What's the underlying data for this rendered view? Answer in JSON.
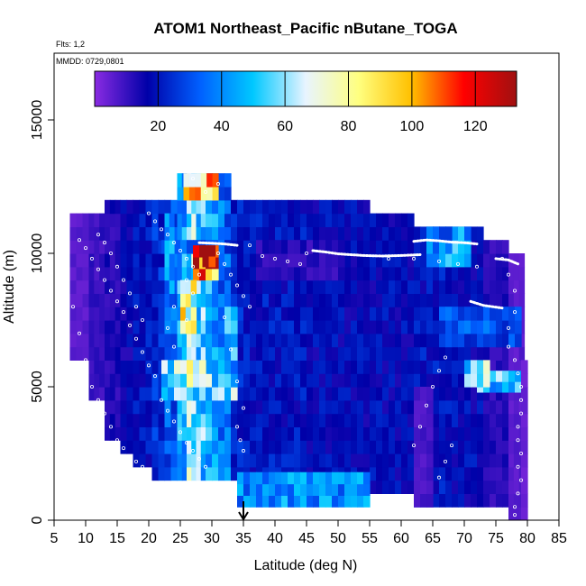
{
  "chart_data": {
    "type": "heatmap",
    "title": "ATOM1 Northeast_Pacific nButane_TOGA",
    "flights_note": "Flts: 1,2",
    "dates_note": "MMDD: 0729,0801",
    "xlabel": "Latitude (deg N)",
    "ylabel": "Altitude (m)",
    "xlim": [
      5,
      85
    ],
    "ylim": [
      0,
      17500
    ],
    "x_ticks": [
      "5",
      "10",
      "15",
      "20",
      "25",
      "30",
      "35",
      "40",
      "45",
      "50",
      "55",
      "60",
      "65",
      "70",
      "75",
      "80",
      "85"
    ],
    "y_ticks": [
      "0",
      "5000",
      "10000",
      "15000"
    ],
    "colorbar": {
      "range": [
        0,
        133
      ],
      "ticks": [
        "20",
        "40",
        "60",
        "80",
        "100",
        "120"
      ],
      "colors": [
        "#8a2be2",
        "#0000a8",
        "#0060ff",
        "#00c8ff",
        "#e8f4ff",
        "#ffff80",
        "#ffc000",
        "#ff0000",
        "#a01010"
      ]
    },
    "marker_latitude": 35,
    "cell_bands": [
      {
        "lat": [
          7.5,
          10.5
        ],
        "alt": [
          6000,
          11500
        ],
        "value": 6
      },
      {
        "lat": [
          10.5,
          13
        ],
        "alt": [
          4500,
          11500
        ],
        "value": 10
      },
      {
        "lat": [
          13,
          15.5
        ],
        "alt": [
          3000,
          12000
        ],
        "value": 13
      },
      {
        "lat": [
          15.5,
          17.5
        ],
        "alt": [
          2500,
          12000
        ],
        "value": 16
      },
      {
        "lat": [
          17.5,
          20.5
        ],
        "alt": [
          2000,
          12000
        ],
        "value": 20
      },
      {
        "lat": [
          20.5,
          22.5
        ],
        "alt": [
          1500,
          12000
        ],
        "value": 24
      },
      {
        "lat": [
          22.5,
          24.5
        ],
        "alt": [
          1500,
          12000
        ],
        "value": 32
      },
      {
        "lat": [
          24.5,
          26
        ],
        "alt": [
          1500,
          13000
        ],
        "value": 45
      },
      {
        "lat": [
          26,
          27.5
        ],
        "alt": [
          1500,
          13000
        ],
        "value": 58
      },
      {
        "lat": [
          27.5,
          29
        ],
        "alt": [
          1500,
          13000
        ],
        "value": 52
      },
      {
        "lat": [
          29,
          31
        ],
        "alt": [
          1500,
          13000
        ],
        "value": 45
      },
      {
        "lat": [
          31,
          33
        ],
        "alt": [
          1500,
          13000
        ],
        "value": 35
      },
      {
        "lat": [
          33,
          35
        ],
        "alt": [
          1500,
          12000
        ],
        "value": 22
      },
      {
        "lat": [
          35,
          45
        ],
        "alt": [
          1500,
          12000
        ],
        "value": 20
      },
      {
        "lat": [
          45,
          55
        ],
        "alt": [
          1500,
          12000
        ],
        "value": 18
      },
      {
        "lat": [
          55,
          62
        ],
        "alt": [
          1000,
          11500
        ],
        "value": 18
      },
      {
        "lat": [
          62,
          68
        ],
        "alt": [
          500,
          11000
        ],
        "value": 20
      },
      {
        "lat": [
          68,
          73
        ],
        "alt": [
          500,
          11000
        ],
        "value": 18
      },
      {
        "lat": [
          73,
          77
        ],
        "alt": [
          500,
          10500
        ],
        "value": 12
      },
      {
        "lat": [
          77,
          79.5
        ],
        "alt": [
          0,
          10000
        ],
        "value": 6
      }
    ],
    "highlight_cells": [
      {
        "lat": [
          34,
          55
        ],
        "alt": [
          500,
          1800
        ],
        "value": 40
      },
      {
        "lat": [
          22,
          34
        ],
        "alt": [
          4500,
          6000
        ],
        "value": 55
      },
      {
        "lat": [
          24,
          29
        ],
        "alt": [
          5000,
          6000
        ],
        "value": 70
      },
      {
        "lat": [
          22,
          33
        ],
        "alt": [
          10000,
          10500
        ],
        "value": 30
      },
      {
        "lat": [
          27,
          31
        ],
        "alt": [
          9000,
          10300
        ],
        "value": 110
      },
      {
        "lat": [
          28.5,
          30.5
        ],
        "alt": [
          9500,
          10300
        ],
        "value": 125
      },
      {
        "lat": [
          25,
          27.5
        ],
        "alt": [
          7000,
          9000
        ],
        "value": 80
      },
      {
        "lat": [
          25.5,
          31
        ],
        "alt": [
          12000,
          13000
        ],
        "value": 90
      },
      {
        "lat": [
          64,
          71
        ],
        "alt": [
          9500,
          11000
        ],
        "value": 45
      },
      {
        "lat": [
          64,
          68
        ],
        "alt": [
          10000,
          11000
        ],
        "value": 35
      },
      {
        "lat": [
          72,
          79
        ],
        "alt": [
          4800,
          5600
        ],
        "value": 50
      },
      {
        "lat": [
          70,
          74
        ],
        "alt": [
          5000,
          6000
        ],
        "value": 60
      },
      {
        "lat": [
          66,
          79
        ],
        "alt": [
          6500,
          8000
        ],
        "value": 30
      },
      {
        "lat": [
          37,
          51
        ],
        "alt": [
          9000,
          10500
        ],
        "value": 12
      },
      {
        "lat": [
          62,
          65
        ],
        "alt": [
          500,
          5000
        ],
        "value": 8
      },
      {
        "lat": [
          79,
          80
        ],
        "alt": [
          0,
          6000
        ],
        "value": 4
      },
      {
        "lat": [
          32,
          34
        ],
        "alt": [
          5000,
          8000
        ],
        "value": 45
      },
      {
        "lat": [
          22.5,
          24
        ],
        "alt": [
          8000,
          11500
        ],
        "value": 40
      }
    ],
    "flight_tracks": [
      [
        [
          46,
          10100
        ],
        [
          48,
          10050
        ],
        [
          50,
          9980
        ],
        [
          52,
          9950
        ],
        [
          54,
          9920
        ],
        [
          57,
          9900
        ],
        [
          60,
          9920
        ],
        [
          63,
          9950
        ]
      ],
      [
        [
          62,
          10450
        ],
        [
          64,
          10500
        ],
        [
          66,
          10470
        ],
        [
          68,
          10420
        ],
        [
          70,
          10400
        ],
        [
          72,
          10350
        ]
      ],
      [
        [
          28,
          10400
        ],
        [
          30,
          10380
        ],
        [
          32,
          10350
        ],
        [
          34,
          10300
        ]
      ],
      [
        [
          71,
          8200
        ],
        [
          73,
          8050
        ],
        [
          74.5,
          8000
        ],
        [
          76,
          7950
        ]
      ],
      [
        [
          75,
          9800
        ],
        [
          77,
          9750
        ],
        [
          78.5,
          9600
        ]
      ]
    ],
    "sample_points": [
      [
        8,
        8000
      ],
      [
        9,
        7000
      ],
      [
        10,
        6000
      ],
      [
        11,
        5000
      ],
      [
        12,
        4500
      ],
      [
        13,
        4000
      ],
      [
        14,
        3500
      ],
      [
        15,
        3000
      ],
      [
        16,
        2700
      ],
      [
        17,
        2400
      ],
      [
        18,
        2200
      ],
      [
        19,
        2000
      ],
      [
        20,
        1800
      ],
      [
        9,
        10500
      ],
      [
        10,
        10200
      ],
      [
        11,
        9800
      ],
      [
        12,
        9400
      ],
      [
        13,
        9000
      ],
      [
        14,
        8600
      ],
      [
        15,
        8200
      ],
      [
        16,
        7800
      ],
      [
        17,
        7300
      ],
      [
        18,
        6800
      ],
      [
        19,
        6300
      ],
      [
        20,
        5800
      ],
      [
        21,
        5400
      ],
      [
        12,
        10700
      ],
      [
        13,
        10400
      ],
      [
        14,
        10000
      ],
      [
        15,
        9500
      ],
      [
        16,
        9000
      ],
      [
        17,
        8500
      ],
      [
        18,
        8000
      ],
      [
        19,
        7500
      ],
      [
        20,
        11500
      ],
      [
        21,
        11200
      ],
      [
        22,
        10900
      ],
      [
        23,
        10700
      ],
      [
        24,
        10400
      ],
      [
        25,
        10100
      ],
      [
        26,
        9800
      ],
      [
        27,
        9500
      ],
      [
        28,
        9200
      ],
      [
        22,
        4500
      ],
      [
        23,
        4100
      ],
      [
        24,
        3700
      ],
      [
        25,
        3300
      ],
      [
        26,
        2900
      ],
      [
        27,
        2600
      ],
      [
        28,
        2300
      ],
      [
        29,
        2000
      ],
      [
        31,
        10000
      ],
      [
        32,
        9600
      ],
      [
        33,
        9200
      ],
      [
        34,
        8800
      ],
      [
        35,
        8400
      ],
      [
        36,
        8000
      ],
      [
        34,
        3500
      ],
      [
        34.5,
        3000
      ],
      [
        35,
        2600
      ],
      [
        35,
        4200
      ],
      [
        34,
        5200
      ],
      [
        33,
        6400
      ],
      [
        32,
        7600
      ],
      [
        40,
        9800
      ],
      [
        42,
        9700
      ],
      [
        44,
        9600
      ],
      [
        38,
        9900
      ],
      [
        58,
        9800
      ],
      [
        62,
        9800
      ],
      [
        66,
        9700
      ],
      [
        69,
        9600
      ],
      [
        72,
        9500
      ],
      [
        76,
        9800
      ],
      [
        77,
        9200
      ],
      [
        78,
        8600
      ],
      [
        78,
        7800
      ],
      [
        77,
        7200
      ],
      [
        77,
        6500
      ],
      [
        78,
        6000
      ],
      [
        78.5,
        5500
      ],
      [
        79,
        5000
      ],
      [
        79,
        4500
      ],
      [
        79,
        4000
      ],
      [
        78.5,
        3500
      ],
      [
        78.5,
        3000
      ],
      [
        79,
        2500
      ],
      [
        78.5,
        2000
      ],
      [
        79,
        1500
      ],
      [
        78.5,
        1000
      ],
      [
        78,
        500
      ],
      [
        78,
        200
      ],
      [
        62,
        2800
      ],
      [
        63,
        3500
      ],
      [
        64,
        4300
      ],
      [
        65,
        5000
      ],
      [
        66,
        5600
      ],
      [
        67,
        6100
      ],
      [
        66,
        1600
      ],
      [
        67,
        2200
      ],
      [
        68,
        2800
      ],
      [
        45,
        10000
      ],
      [
        36,
        10300
      ],
      [
        27,
        12800
      ],
      [
        29,
        12300
      ],
      [
        31,
        12600
      ],
      [
        26,
        7500
      ],
      [
        27,
        8500
      ],
      [
        26,
        9000
      ],
      [
        24,
        8000
      ],
      [
        23,
        7200
      ],
      [
        24,
        6500
      ]
    ]
  }
}
